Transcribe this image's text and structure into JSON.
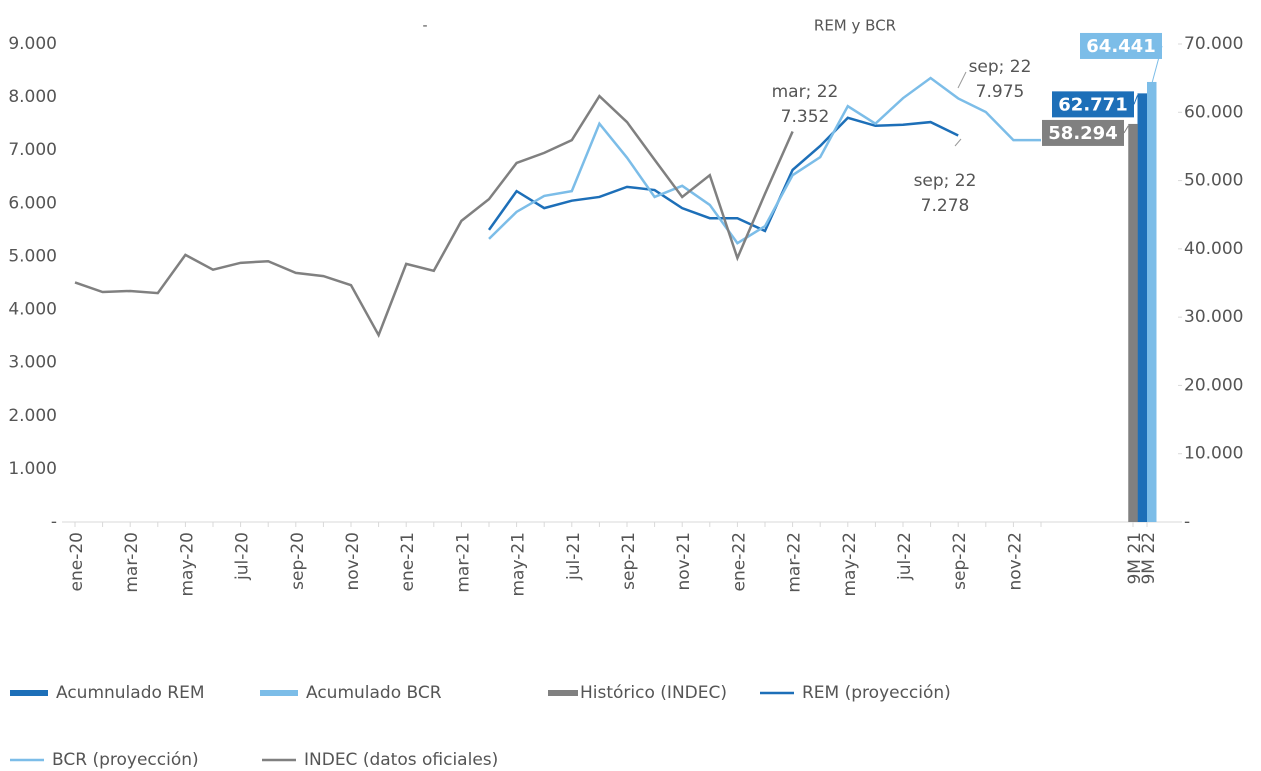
{
  "chart_data": {
    "type": "line",
    "titles": [
      "-",
      "REM y BCR"
    ],
    "categories": [
      "ene-20",
      null,
      "mar-20",
      null,
      "may-20",
      null,
      "jul-20",
      null,
      "sep-20",
      null,
      "nov-20",
      null,
      "ene-21",
      null,
      "mar-21",
      null,
      "may-21",
      null,
      "jul-21",
      null,
      "sep-21",
      null,
      "nov-21",
      null,
      "ene-22",
      null,
      "mar-22",
      null,
      "may-22",
      null,
      "jul-22",
      null,
      "sep-22",
      null,
      "nov-22",
      null,
      "9M 21",
      "9M 22"
    ],
    "series": [
      {
        "name": "Acumnulado REM",
        "type": "bar",
        "axis": "y2",
        "color": "#1d6fb8",
        "values": [
          null,
          null,
          null,
          null,
          null,
          null,
          null,
          null,
          null,
          null,
          null,
          null,
          null,
          null,
          null,
          null,
          null,
          null,
          null,
          null,
          null,
          null,
          null,
          null,
          null,
          null,
          null,
          null,
          null,
          null,
          null,
          null,
          null,
          null,
          null,
          null,
          null,
          62771
        ],
        "value_labels": [
          null,
          null,
          null,
          null,
          null,
          null,
          null,
          null,
          null,
          null,
          null,
          null,
          null,
          null,
          null,
          null,
          null,
          null,
          null,
          null,
          null,
          null,
          null,
          null,
          null,
          null,
          null,
          null,
          null,
          null,
          null,
          null,
          null,
          null,
          null,
          null,
          null,
          "62.771"
        ]
      },
      {
        "name": "Acumulado BCR",
        "type": "bar",
        "axis": "y2",
        "color": "#7cbde8",
        "values": [
          null,
          null,
          null,
          null,
          null,
          null,
          null,
          null,
          null,
          null,
          null,
          null,
          null,
          null,
          null,
          null,
          null,
          null,
          null,
          null,
          null,
          null,
          null,
          null,
          null,
          null,
          null,
          null,
          null,
          null,
          null,
          null,
          null,
          null,
          null,
          null,
          null,
          64441
        ],
        "value_labels": [
          null,
          null,
          null,
          null,
          null,
          null,
          null,
          null,
          null,
          null,
          null,
          null,
          null,
          null,
          null,
          null,
          null,
          null,
          null,
          null,
          null,
          null,
          null,
          null,
          null,
          null,
          null,
          null,
          null,
          null,
          null,
          null,
          null,
          null,
          null,
          null,
          null,
          "64.441"
        ]
      },
      {
        "name": "Histórico (INDEC)",
        "type": "bar",
        "axis": "y2",
        "color": "#808080",
        "values": [
          null,
          null,
          null,
          null,
          null,
          null,
          null,
          null,
          null,
          null,
          null,
          null,
          null,
          null,
          null,
          null,
          null,
          null,
          null,
          null,
          null,
          null,
          null,
          null,
          null,
          null,
          null,
          null,
          null,
          null,
          null,
          null,
          null,
          null,
          null,
          null,
          58294,
          null
        ],
        "value_labels": [
          null,
          null,
          null,
          null,
          null,
          null,
          null,
          null,
          null,
          null,
          null,
          null,
          null,
          null,
          null,
          null,
          null,
          null,
          null,
          null,
          null,
          null,
          null,
          null,
          null,
          null,
          null,
          null,
          null,
          null,
          null,
          null,
          null,
          null,
          null,
          null,
          "58.294",
          null
        ]
      },
      {
        "name": "REM (proyección)",
        "type": "line",
        "axis": "y",
        "color": "#1d6fb8",
        "values": [
          null,
          null,
          null,
          null,
          null,
          null,
          null,
          null,
          null,
          null,
          null,
          null,
          null,
          null,
          null,
          5500,
          6230,
          5910,
          6050,
          6120,
          6310,
          6250,
          5910,
          5720,
          5720,
          5480,
          6630,
          7080,
          7610,
          7460,
          7480,
          7530,
          7278,
          null,
          null,
          null,
          null,
          null
        ]
      },
      {
        "name": "BCR (proyección)",
        "type": "line",
        "axis": "y",
        "color": "#7cbde8",
        "values": [
          null,
          null,
          null,
          null,
          null,
          null,
          null,
          null,
          null,
          null,
          null,
          null,
          null,
          null,
          null,
          5330,
          5840,
          6140,
          6230,
          7500,
          6860,
          6120,
          6330,
          5970,
          5250,
          5570,
          6530,
          6870,
          7830,
          7500,
          7980,
          8360,
          7975,
          7720,
          7190,
          7190,
          null,
          null
        ]
      },
      {
        "name": "INDEC (datos oficiales)",
        "type": "line",
        "axis": "y",
        "color": "#808080",
        "values": [
          4510,
          4330,
          4350,
          4310,
          5030,
          4750,
          4880,
          4910,
          4690,
          4630,
          4460,
          3520,
          4860,
          4730,
          5670,
          6080,
          6760,
          6950,
          7190,
          8020,
          7530,
          6820,
          6120,
          6530,
          4970,
          6180,
          7352,
          null,
          null,
          null,
          null,
          null,
          null,
          null,
          null,
          null,
          null,
          null
        ]
      }
    ],
    "annotations": [
      [
        "mar; 22",
        "7.352"
      ],
      [
        "sep; 22",
        "7.975"
      ],
      [
        "sep; 22",
        "7.278"
      ]
    ],
    "ylim": [
      0,
      9000
    ],
    "yticks": [
      {
        "value": 0,
        "label": "-"
      },
      {
        "value": 1000,
        "label": "1.000"
      },
      {
        "value": 2000,
        "label": "2.000"
      },
      {
        "value": 3000,
        "label": "3.000"
      },
      {
        "value": 4000,
        "label": "4.000"
      },
      {
        "value": 5000,
        "label": "5.000"
      },
      {
        "value": 6000,
        "label": "6.000"
      },
      {
        "value": 7000,
        "label": "7.000"
      },
      {
        "value": 8000,
        "label": "8.000"
      },
      {
        "value": 9000,
        "label": "9.000"
      }
    ],
    "y2lim": [
      0,
      70000
    ],
    "y2ticks": [
      {
        "value": 0,
        "label": "-"
      },
      {
        "value": 10000,
        "label": "10.000"
      },
      {
        "value": 20000,
        "label": "20.000"
      },
      {
        "value": 30000,
        "label": "30.000"
      },
      {
        "value": 40000,
        "label": "40.000"
      },
      {
        "value": 50000,
        "label": "50.000"
      },
      {
        "value": 60000,
        "label": "60.000"
      },
      {
        "value": 70000,
        "label": "70.000"
      }
    ],
    "grid": false
  }
}
